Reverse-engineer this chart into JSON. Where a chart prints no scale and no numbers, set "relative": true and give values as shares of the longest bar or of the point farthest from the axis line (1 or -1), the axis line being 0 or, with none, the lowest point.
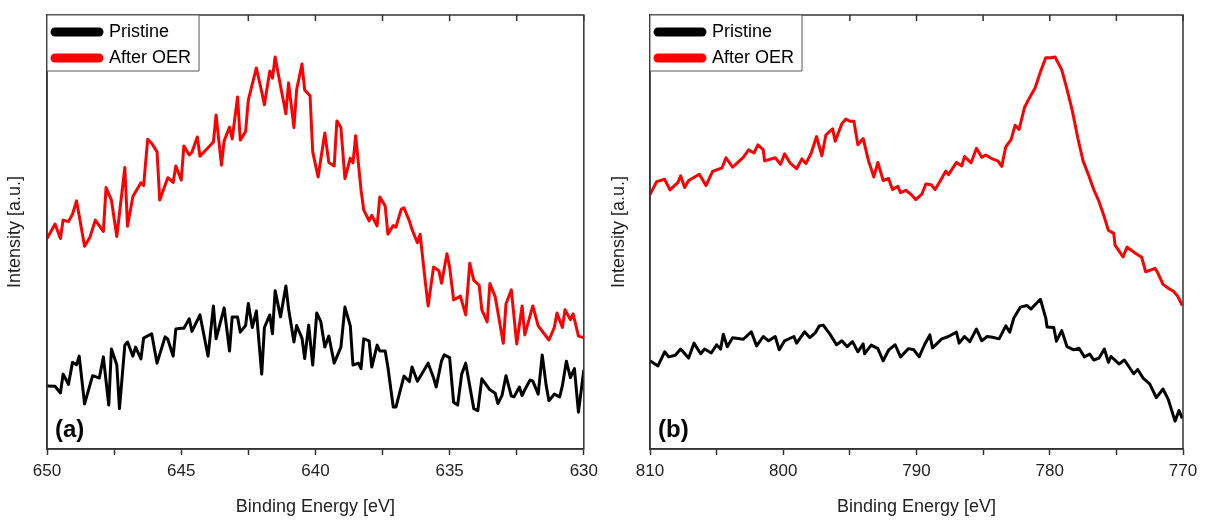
{
  "chart_data": [
    {
      "type": "line",
      "relative": true,
      "xlabel": "Binding Energy [eV]",
      "ylabel": "Intensity [a.u.]",
      "xlim": [
        650,
        630
      ],
      "xticks": [
        650,
        {
          "value": 647.5,
          "label": null
        },
        645,
        {
          "value": 642.5,
          "label": null
        },
        640,
        {
          "value": 637.5,
          "label": null
        },
        635,
        {
          "value": 632.5,
          "label": null
        },
        630
      ],
      "legend": "top left",
      "annotations": [
        "(a)"
      ],
      "series": [
        {
          "name": "Pristine",
          "color": "#000000",
          "x": [
            650,
            649.7,
            649.5,
            649.4,
            649.2,
            649.05,
            648.9,
            648.8,
            648.6,
            648.3,
            648.05,
            647.9,
            647.7,
            647.6,
            647.4,
            647.3,
            647.1,
            647,
            646.8,
            646.7,
            646.5,
            646.4,
            646.1,
            645.9,
            645.6,
            645.5,
            645.3,
            645.2,
            645,
            644.9,
            644.7,
            644.6,
            644.3,
            644,
            643.8,
            643.7,
            643.4,
            643.2,
            643.1,
            642.9,
            642.8,
            642.6,
            642.5,
            642.35,
            642.2,
            642,
            641.9,
            641.7,
            641.6,
            641.5,
            641.3,
            641.1,
            641,
            640.8,
            640.7,
            640.5,
            640.4,
            640.25,
            640.1,
            639.95,
            639.8,
            639.65,
            639.5,
            639.3,
            639.05,
            638.9,
            638.7,
            638.6,
            638.4,
            638.3,
            638.2,
            638,
            637.9,
            637.7,
            637.6,
            637.4,
            637.3,
            637.1,
            637,
            636.7,
            636.5,
            636.4,
            636.2,
            635.8,
            635.6,
            635.5,
            635.3,
            635.2,
            635,
            634.85,
            634.7,
            634.55,
            634.4,
            634.1,
            633.95,
            633.8,
            633.5,
            633.3,
            633.2,
            633.05,
            632.9,
            632.7,
            632.6,
            632.4,
            632.3,
            632.2,
            632,
            631.9,
            631.7,
            631.55,
            631.4,
            631.3,
            631.1,
            630.9,
            630.8,
            630.65,
            630.5,
            630.35,
            630.2,
            630
          ],
          "values": [
            0.161,
            0.16,
            0.143,
            0.191,
            0.165,
            0.221,
            0.215,
            0.237,
            0.115,
            0.187,
            0.181,
            0.235,
            0.112,
            0.255,
            0.215,
            0.103,
            0.265,
            0.273,
            0.237,
            0.26,
            0.23,
            0.283,
            0.294,
            0.219,
            0.286,
            0.28,
            0.237,
            0.306,
            0.308,
            0.308,
            0.332,
            0.3,
            0.342,
            0.237,
            0.365,
            0.281,
            0.36,
            0.25,
            0.337,
            0.337,
            0.298,
            0.315,
            0.371,
            0.31,
            0.352,
            0.191,
            0.31,
            0.342,
            0.294,
            0.404,
            0.337,
            0.416,
            0.358,
            0.273,
            0.315,
            0.283,
            0.231,
            0.316,
            0.214,
            0.347,
            0.325,
            0.26,
            0.288,
            0.219,
            0.26,
            0.362,
            0.314,
            0.214,
            0.219,
            0.205,
            0.281,
            0.276,
            0.209,
            0.265,
            0.25,
            0.25,
            0.209,
            0.107,
            0.107,
            0.186,
            0.172,
            0.209,
            0.173,
            0.219,
            0.182,
            0.158,
            0.225,
            0.24,
            0.233,
            0.119,
            0.112,
            0.191,
            0.219,
            0.103,
            0.098,
            0.179,
            0.151,
            0.142,
            0.116,
            0.136,
            0.187,
            0.135,
            0.133,
            0.158,
            0.136,
            0.151,
            0.176,
            0.173,
            0.14,
            0.24,
            0.161,
            0.123,
            0.14,
            0.133,
            0.161,
            0.224,
            0.182,
            0.205,
            0.094,
            0.202
          ]
        },
        {
          "name": "After OER",
          "color": "#ff0000",
          "x": [
            650,
            649.7,
            649.5,
            649.4,
            649.2,
            649.05,
            648.9,
            648.6,
            648.4,
            648.2,
            647.9,
            647.8,
            647.6,
            647.4,
            647.1,
            647,
            646.8,
            646.5,
            646.4,
            646.25,
            646.1,
            645.9,
            645.8,
            645.5,
            645.3,
            645.2,
            645,
            644.9,
            644.7,
            644.6,
            644.4,
            644.3,
            643.8,
            643.7,
            643.5,
            643.4,
            643.2,
            643.1,
            642.9,
            642.8,
            642.6,
            642.5,
            642.2,
            642,
            641.9,
            641.7,
            641.6,
            641.5,
            641.3,
            641.1,
            641,
            640.8,
            640.7,
            640.5,
            640.4,
            640.2,
            640.1,
            639.9,
            639.65,
            639.5,
            639.3,
            639.2,
            639.05,
            638.9,
            638.7,
            638.6,
            638.5,
            638.3,
            638.2,
            638,
            637.9,
            637.7,
            637.6,
            637.4,
            637.3,
            637.1,
            637,
            636.8,
            636.7,
            636.5,
            636.4,
            636.2,
            636.1,
            635.9,
            635.8,
            635.6,
            635.4,
            635.3,
            635.1,
            635,
            634.85,
            634.6,
            634.4,
            634.25,
            634.1,
            633.9,
            633.8,
            633.6,
            633.5,
            633.3,
            633,
            632.9,
            632.7,
            632.5,
            632.3,
            632.2,
            631.9,
            631.7,
            631.3,
            631.1,
            631,
            630.8,
            630.7,
            630.5,
            630.4,
            630.2,
            630
          ],
          "values": [
            0.537,
            0.574,
            0.537,
            0.584,
            0.58,
            0.599,
            0.633,
            0.517,
            0.54,
            0.584,
            0.555,
            0.667,
            0.635,
            0.542,
            0.718,
            0.568,
            0.644,
            0.679,
            0.672,
            0.79,
            0.78,
            0.758,
            0.635,
            0.692,
            0.68,
            0.722,
            0.686,
            0.773,
            0.75,
            0.757,
            0.796,
            0.747,
            0.783,
            0.852,
            0.724,
            0.786,
            0.821,
            0.791,
            0.898,
            0.788,
            0.81,
            0.89,
            0.972,
            0.911,
            0.878,
            0.964,
            0.946,
            1,
            0.926,
            0.855,
            0.934,
            0.82,
            0.916,
            0.982,
            0.916,
            0.901,
            0.758,
            0.694,
            0.806,
            0.731,
            0.722,
            0.837,
            0.82,
            0.69,
            0.742,
            0.73,
            0.799,
            0.661,
            0.61,
            0.582,
            0.596,
            0.569,
            0.643,
            0.62,
            0.548,
            0.57,
            0.566,
            0.612,
            0.615,
            0.582,
            0.56,
            0.526,
            0.548,
            0.423,
            0.365,
            0.464,
            0.455,
            0.423,
            0.498,
            0.464,
            0.38,
            0.39,
            0.342,
            0.474,
            0.43,
            0.418,
            0.355,
            0.324,
            0.422,
            0.388,
            0.27,
            0.37,
            0.406,
            0.268,
            0.365,
            0.291,
            0.365,
            0.314,
            0.278,
            0.31,
            0.347,
            0.31,
            0.355,
            0.33,
            0.345,
            0.288,
            0.284
          ]
        }
      ]
    },
    {
      "type": "line",
      "relative": true,
      "xlabel": "Binding Energy [eV]",
      "ylabel": "Intensity [a.u.]",
      "xlim": [
        810,
        770
      ],
      "xticks": [
        810,
        {
          "value": 805,
          "label": null
        },
        800,
        {
          "value": 795,
          "label": null
        },
        790,
        {
          "value": 785,
          "label": null
        },
        780,
        {
          "value": 775,
          "label": null
        },
        770
      ],
      "legend": "top left",
      "annotations": [
        "(b)"
      ],
      "series": [
        {
          "name": "Pristine",
          "color": "#000000",
          "x": [
            810,
            809.4,
            808.9,
            808.6,
            808.1,
            807.7,
            807.1,
            806.7,
            806.2,
            805.9,
            805.4,
            805,
            804.7,
            804.5,
            804.2,
            803.8,
            803,
            802.4,
            802,
            801.5,
            801.1,
            800.6,
            800.3,
            799.9,
            799.2,
            799,
            798.4,
            798,
            797.6,
            797.3,
            797,
            796.5,
            796,
            795.6,
            795.2,
            794.8,
            794.4,
            794,
            793.9,
            793.4,
            792.9,
            792.5,
            792.1,
            791.6,
            791.2,
            790.6,
            790.2,
            789.8,
            789.4,
            789,
            788.8,
            788.1,
            787.6,
            787,
            786.8,
            786.4,
            786,
            785.5,
            785.1,
            784.7,
            784.3,
            783.8,
            783.3,
            783,
            782.7,
            782.2,
            781.7,
            781.4,
            781.1,
            780.7,
            780.3,
            780.2,
            779.7,
            779.5,
            779.1,
            778.7,
            778.2,
            777.8,
            777.4,
            777,
            776.7,
            776.3,
            775.9,
            775.6,
            775.4,
            774.8,
            774.4,
            773.7,
            773.4,
            773,
            772.5,
            772,
            771.5,
            771.1,
            770.6,
            770.3,
            770.05
          ],
          "values": [
            0.225,
            0.212,
            0.248,
            0.235,
            0.239,
            0.255,
            0.232,
            0.27,
            0.243,
            0.255,
            0.245,
            0.266,
            0.255,
            0.293,
            0.261,
            0.284,
            0.28,
            0.299,
            0.263,
            0.287,
            0.276,
            0.287,
            0.253,
            0.276,
            0.287,
            0.27,
            0.299,
            0.284,
            0.296,
            0.314,
            0.316,
            0.293,
            0.266,
            0.276,
            0.261,
            0.274,
            0.248,
            0.268,
            0.243,
            0.265,
            0.256,
            0.225,
            0.252,
            0.266,
            0.235,
            0.256,
            0.253,
            0.235,
            0.266,
            0.291,
            0.258,
            0.281,
            0.287,
            0.298,
            0.27,
            0.287,
            0.274,
            0.306,
            0.276,
            0.287,
            0.285,
            0.281,
            0.314,
            0.298,
            0.334,
            0.362,
            0.366,
            0.357,
            0.368,
            0.382,
            0.334,
            0.311,
            0.31,
            0.275,
            0.302,
            0.261,
            0.253,
            0.257,
            0.235,
            0.242,
            0.227,
            0.232,
            0.255,
            0.221,
            0.236,
            0.217,
            0.227,
            0.192,
            0.203,
            0.181,
            0.166,
            0.131,
            0.153,
            0.126,
            0.071,
            0.098,
            0.078
          ]
        },
        {
          "name": "After OER",
          "color": "#ff0000",
          "x": [
            810,
            809.5,
            808.9,
            808.5,
            807.9,
            807.7,
            807.4,
            807.1,
            806.3,
            805.8,
            805.3,
            804.6,
            804.3,
            803.8,
            803,
            802.6,
            802.2,
            801.9,
            801.5,
            801.4,
            800.6,
            800.2,
            799.9,
            799.5,
            799,
            798.6,
            798.3,
            797.9,
            797.5,
            797.1,
            796.8,
            796.3,
            796.1,
            795.6,
            795.3,
            795,
            794.7,
            794.4,
            794,
            793.6,
            793.2,
            792.9,
            792.5,
            792.1,
            791.8,
            791.4,
            791.2,
            790.8,
            790.4,
            790.05,
            789.6,
            789.3,
            788.9,
            788.6,
            788.2,
            787.8,
            787.6,
            787,
            786.6,
            786.4,
            785.9,
            785.5,
            785.1,
            784.8,
            784.3,
            783.9,
            783.6,
            783.3,
            782.9,
            782.6,
            782.3,
            781.9,
            781.5,
            781.1,
            780.7,
            780.3,
            779.9,
            779.6,
            779.1,
            778.7,
            778.3,
            777.9,
            777.5,
            777.1,
            776.7,
            776.3,
            775.9,
            775.6,
            775.2,
            775.1,
            774.5,
            774.2,
            773.6,
            773.1,
            772.8,
            772.1,
            771.9,
            771.5,
            771.1,
            770.7,
            770.4,
            770.05
          ],
          "values": [
            0.649,
            0.682,
            0.688,
            0.661,
            0.68,
            0.697,
            0.667,
            0.685,
            0.701,
            0.672,
            0.708,
            0.717,
            0.743,
            0.719,
            0.744,
            0.763,
            0.755,
            0.776,
            0.763,
            0.735,
            0.743,
            0.726,
            0.753,
            0.73,
            0.715,
            0.74,
            0.728,
            0.755,
            0.797,
            0.748,
            0.801,
            0.817,
            0.785,
            0.83,
            0.842,
            0.836,
            0.836,
            0.776,
            0.792,
            0.735,
            0.694,
            0.731,
            0.685,
            0.69,
            0.662,
            0.67,
            0.654,
            0.66,
            0.649,
            0.636,
            0.65,
            0.676,
            0.674,
            0.662,
            0.685,
            0.709,
            0.7,
            0.731,
            0.722,
            0.746,
            0.73,
            0.767,
            0.744,
            0.75,
            0.74,
            0.735,
            0.721,
            0.771,
            0.789,
            0.826,
            0.815,
            0.871,
            0.897,
            0.921,
            0.962,
            0.998,
            0.998,
            1,
            0.967,
            0.917,
            0.862,
            0.794,
            0.735,
            0.7,
            0.662,
            0.631,
            0.591,
            0.558,
            0.55,
            0.52,
            0.49,
            0.515,
            0.5,
            0.489,
            0.452,
            0.461,
            0.45,
            0.42,
            0.41,
            0.402,
            0.39,
            0.366
          ]
        }
      ]
    }
  ]
}
